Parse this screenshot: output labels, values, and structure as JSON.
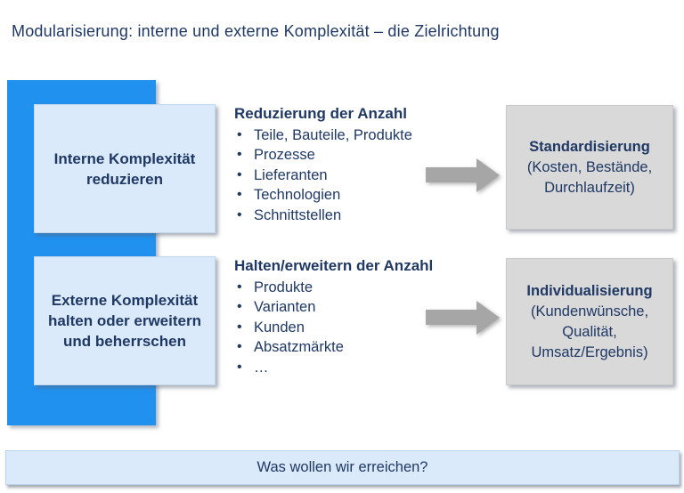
{
  "title": "Modularisierung: interne und externe Komplexität – die Zielrichtung",
  "colors": {
    "accent_blue": "#2191f0",
    "light_blue": "#daeafa",
    "box_gray": "#d9d9d9",
    "arrow_gray": "#a6a6a6",
    "navy": "#1f3864"
  },
  "rows": [
    {
      "left_box": {
        "lines": [
          "Interne Komplexität",
          "reduzieren"
        ]
      },
      "middle": {
        "heading": "Reduzierung der Anzahl",
        "items": [
          "Teile, Bauteile, Produkte",
          "Prozesse",
          "Lieferanten",
          "Technologien",
          "Schnittstellen"
        ]
      },
      "right_box": {
        "title": "Standardisierung",
        "lines": [
          "(Kosten, Bestände,",
          "Durchlaufzeit)"
        ]
      }
    },
    {
      "left_box": {
        "lines": [
          "Externe Komplexität",
          "halten oder erweitern",
          "und beherrschen"
        ]
      },
      "middle": {
        "heading": "Halten/erweitern der Anzahl",
        "items": [
          "Produkte",
          "Varianten",
          "Kunden",
          "Absatzmärkte",
          "…"
        ]
      },
      "right_box": {
        "title": "Individualisierung",
        "lines": [
          "(Kundenwünsche,",
          "Qualität,",
          "Umsatz/Ergebnis)"
        ]
      }
    }
  ],
  "footer": {
    "label": "Was wollen wir erreichen?"
  }
}
